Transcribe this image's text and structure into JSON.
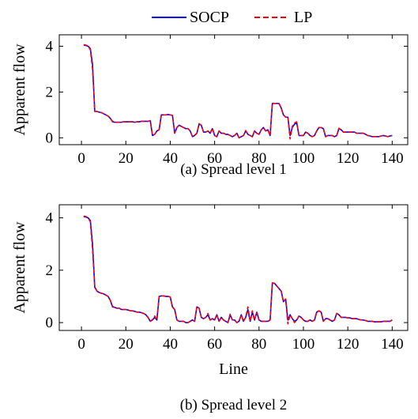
{
  "legend": {
    "entries": [
      {
        "name": "SOCP",
        "color": "#0000ff",
        "dash": "solid"
      },
      {
        "name": "LP",
        "color": "#ff0000",
        "dash": "dashed"
      }
    ],
    "placement": "top-center"
  },
  "chart_data": [
    {
      "type": "line",
      "caption": "(a) Spread level 1",
      "ylabel": "Apparent flow",
      "xlabel": "",
      "xlim": [
        -10,
        147
      ],
      "ylim": [
        -0.3,
        4.5
      ],
      "xticks": [
        0,
        20,
        40,
        60,
        80,
        100,
        120,
        140
      ],
      "yticks": [
        0,
        2,
        4
      ],
      "grid": false,
      "x": [
        1,
        2,
        3,
        4,
        5,
        6,
        7,
        8,
        9,
        10,
        11,
        12,
        13,
        14,
        15,
        16,
        17,
        18,
        19,
        20,
        21,
        22,
        23,
        24,
        25,
        26,
        27,
        28,
        29,
        30,
        31,
        32,
        33,
        34,
        35,
        36,
        37,
        38,
        39,
        40,
        41,
        42,
        43,
        44,
        45,
        46,
        47,
        48,
        49,
        50,
        51,
        52,
        53,
        54,
        55,
        56,
        57,
        58,
        59,
        60,
        61,
        62,
        63,
        64,
        65,
        66,
        67,
        68,
        69,
        70,
        71,
        72,
        73,
        74,
        75,
        76,
        77,
        78,
        79,
        80,
        81,
        82,
        83,
        84,
        85,
        86,
        87,
        88,
        89,
        90,
        91,
        92,
        93,
        94,
        95,
        96,
        97,
        98,
        99,
        100,
        101,
        102,
        103,
        104,
        105,
        106,
        107,
        108,
        109,
        110,
        111,
        112,
        113,
        114,
        115,
        116,
        117,
        118,
        119,
        120,
        121,
        122,
        123,
        124,
        125,
        126,
        127,
        128,
        129,
        130,
        131,
        132,
        133,
        134,
        135,
        136,
        137,
        138,
        139,
        140
      ],
      "series": [
        {
          "name": "SOCP",
          "values": [
            4.05,
            4.03,
            4.0,
            3.9,
            3.2,
            1.15,
            1.15,
            1.12,
            1.1,
            1.05,
            1.0,
            0.95,
            0.85,
            0.7,
            0.68,
            0.68,
            0.68,
            0.68,
            0.7,
            0.7,
            0.7,
            0.7,
            0.7,
            0.68,
            0.7,
            0.7,
            0.72,
            0.72,
            0.72,
            0.72,
            0.75,
            0.1,
            0.15,
            0.3,
            0.35,
            1.0,
            1.0,
            1.0,
            1.02,
            1.0,
            0.98,
            0.2,
            0.45,
            0.55,
            0.5,
            0.45,
            0.4,
            0.4,
            0.3,
            0.05,
            0.1,
            0.2,
            0.6,
            0.55,
            0.25,
            0.25,
            0.3,
            0.2,
            0.4,
            0.1,
            0.05,
            0.3,
            0.2,
            0.2,
            0.15,
            0.15,
            0.1,
            0.05,
            0.1,
            0.2,
            0.0,
            0.05,
            0.1,
            0.3,
            0.15,
            0.1,
            0.05,
            0.3,
            0.2,
            0.15,
            0.35,
            0.45,
            0.3,
            0.35,
            0.1,
            1.5,
            1.5,
            1.5,
            1.5,
            1.3,
            1.0,
            0.9,
            0.9,
            0.1,
            0.45,
            0.6,
            0.65,
            0.1,
            0.1,
            0.1,
            0.25,
            0.2,
            0.1,
            0.05,
            0.1,
            0.3,
            0.45,
            0.45,
            0.4,
            0.05,
            0.1,
            0.1,
            0.1,
            0.05,
            0.1,
            0.4,
            0.35,
            0.25,
            0.25,
            0.25,
            0.25,
            0.25,
            0.25,
            0.2,
            0.2,
            0.2,
            0.2,
            0.15,
            0.1,
            0.08,
            0.05,
            0.05,
            0.05,
            0.05,
            0.08,
            0.1,
            0.08,
            0.05,
            0.08,
            0.1
          ]
        },
        {
          "name": "LP",
          "values": [
            4.07,
            4.05,
            4.0,
            3.85,
            3.0,
            1.18,
            1.15,
            1.12,
            1.1,
            1.05,
            1.0,
            0.95,
            0.85,
            0.72,
            0.68,
            0.68,
            0.68,
            0.68,
            0.7,
            0.7,
            0.7,
            0.7,
            0.7,
            0.68,
            0.7,
            0.7,
            0.72,
            0.72,
            0.72,
            0.72,
            0.75,
            0.12,
            0.15,
            0.3,
            0.35,
            1.02,
            1.0,
            1.0,
            1.02,
            1.0,
            0.98,
            0.22,
            0.45,
            0.55,
            0.5,
            0.45,
            0.4,
            0.4,
            0.3,
            0.05,
            0.12,
            0.2,
            0.62,
            0.55,
            0.25,
            0.25,
            0.3,
            0.2,
            0.42,
            0.1,
            0.05,
            0.3,
            0.2,
            0.2,
            0.15,
            0.15,
            0.1,
            0.05,
            0.1,
            0.2,
            0.0,
            0.05,
            0.1,
            0.32,
            0.15,
            0.1,
            0.05,
            0.3,
            0.2,
            0.15,
            0.35,
            0.45,
            0.3,
            0.35,
            0.1,
            1.52,
            1.5,
            1.5,
            1.5,
            1.3,
            1.0,
            0.9,
            0.92,
            -0.05,
            0.5,
            0.65,
            0.7,
            0.1,
            0.1,
            0.1,
            0.25,
            0.2,
            0.1,
            0.05,
            0.1,
            0.3,
            0.45,
            0.45,
            0.4,
            0.05,
            0.1,
            0.1,
            0.1,
            0.05,
            0.1,
            0.42,
            0.35,
            0.25,
            0.25,
            0.25,
            0.25,
            0.25,
            0.25,
            0.2,
            0.2,
            0.2,
            0.2,
            0.15,
            0.1,
            0.08,
            0.05,
            0.05,
            0.05,
            0.05,
            0.08,
            0.1,
            0.08,
            0.05,
            0.08,
            0.1
          ]
        }
      ]
    },
    {
      "type": "line",
      "caption": "(b) Spread level 2",
      "ylabel": "Apparent flow",
      "xlabel": "Line",
      "xlim": [
        -10,
        147
      ],
      "ylim": [
        -0.3,
        4.5
      ],
      "xticks": [
        0,
        20,
        40,
        60,
        80,
        100,
        120,
        140
      ],
      "yticks": [
        0,
        2,
        4
      ],
      "grid": false,
      "x": [
        1,
        2,
        3,
        4,
        5,
        6,
        7,
        8,
        9,
        10,
        11,
        12,
        13,
        14,
        15,
        16,
        17,
        18,
        19,
        20,
        21,
        22,
        23,
        24,
        25,
        26,
        27,
        28,
        29,
        30,
        31,
        32,
        33,
        34,
        35,
        36,
        37,
        38,
        39,
        40,
        41,
        42,
        43,
        44,
        45,
        46,
        47,
        48,
        49,
        50,
        51,
        52,
        53,
        54,
        55,
        56,
        57,
        58,
        59,
        60,
        61,
        62,
        63,
        64,
        65,
        66,
        67,
        68,
        69,
        70,
        71,
        72,
        73,
        74,
        75,
        76,
        77,
        78,
        79,
        80,
        81,
        82,
        83,
        84,
        85,
        86,
        87,
        88,
        89,
        90,
        91,
        92,
        93,
        94,
        95,
        96,
        97,
        98,
        99,
        100,
        101,
        102,
        103,
        104,
        105,
        106,
        107,
        108,
        109,
        110,
        111,
        112,
        113,
        114,
        115,
        116,
        117,
        118,
        119,
        120,
        121,
        122,
        123,
        124,
        125,
        126,
        127,
        128,
        129,
        130,
        131,
        132,
        133,
        134,
        135,
        136,
        137,
        138,
        139,
        140
      ],
      "series": [
        {
          "name": "SOCP",
          "values": [
            4.05,
            4.03,
            4.0,
            3.9,
            3.0,
            1.35,
            1.2,
            1.15,
            1.12,
            1.1,
            1.05,
            1.0,
            0.85,
            0.6,
            0.58,
            0.55,
            0.55,
            0.5,
            0.5,
            0.5,
            0.48,
            0.45,
            0.45,
            0.43,
            0.4,
            0.4,
            0.38,
            0.35,
            0.3,
            0.2,
            0.05,
            0.1,
            0.2,
            0.1,
            1.0,
            1.02,
            1.02,
            1.0,
            1.0,
            0.98,
            0.6,
            0.5,
            0.1,
            0.05,
            0.05,
            0.05,
            0.0,
            0.0,
            0.05,
            0.1,
            0.05,
            0.6,
            0.55,
            0.2,
            0.15,
            0.2,
            0.3,
            0.1,
            0.15,
            0.1,
            0.3,
            0.05,
            0.2,
            0.1,
            0.05,
            0.0,
            0.3,
            0.1,
            0.1,
            0.0,
            0.05,
            0.3,
            0.05,
            0.2,
            0.5,
            0.05,
            0.4,
            0.1,
            0.4,
            0.1,
            0.05,
            0.05,
            0.05,
            0.05,
            0.1,
            1.5,
            1.5,
            1.4,
            1.3,
            1.2,
            0.8,
            0.9,
            0.1,
            0.3,
            0.15,
            0.05,
            0.1,
            0.25,
            0.2,
            0.1,
            0.05,
            0.05,
            0.1,
            0.05,
            0.1,
            0.4,
            0.45,
            0.4,
            0.05,
            0.15,
            0.15,
            0.1,
            0.05,
            0.1,
            0.35,
            0.3,
            0.2,
            0.2,
            0.2,
            0.18,
            0.18,
            0.15,
            0.15,
            0.15,
            0.12,
            0.1,
            0.1,
            0.08,
            0.05,
            0.05,
            0.05,
            0.03,
            0.03,
            0.03,
            0.03,
            0.05,
            0.05,
            0.05,
            0.05,
            0.1
          ]
        },
        {
          "name": "LP",
          "values": [
            4.07,
            4.05,
            4.0,
            3.85,
            2.8,
            1.38,
            1.2,
            1.15,
            1.12,
            1.1,
            1.05,
            1.0,
            0.85,
            0.62,
            0.58,
            0.55,
            0.55,
            0.5,
            0.5,
            0.5,
            0.48,
            0.45,
            0.45,
            0.43,
            0.4,
            0.4,
            0.38,
            0.35,
            0.3,
            0.2,
            0.05,
            0.12,
            0.25,
            0.1,
            1.0,
            1.02,
            1.02,
            1.0,
            1.0,
            0.98,
            0.6,
            0.5,
            0.1,
            0.05,
            0.05,
            0.05,
            0.0,
            0.0,
            0.05,
            0.1,
            0.05,
            0.62,
            0.55,
            0.2,
            0.15,
            0.2,
            0.35,
            0.1,
            0.15,
            0.1,
            0.3,
            0.05,
            0.2,
            0.1,
            0.05,
            0.0,
            0.32,
            0.1,
            0.1,
            0.0,
            0.05,
            0.3,
            0.05,
            0.2,
            0.6,
            0.05,
            0.45,
            0.1,
            0.4,
            0.1,
            0.05,
            0.05,
            0.05,
            0.05,
            0.1,
            1.52,
            1.5,
            1.4,
            1.3,
            1.2,
            0.8,
            0.9,
            -0.05,
            0.3,
            0.15,
            0.0,
            0.1,
            0.25,
            0.2,
            0.1,
            0.05,
            0.05,
            0.1,
            0.05,
            0.1,
            0.42,
            0.45,
            0.4,
            0.05,
            0.15,
            0.15,
            0.1,
            0.05,
            0.1,
            0.35,
            0.3,
            0.2,
            0.2,
            0.2,
            0.18,
            0.18,
            0.15,
            0.15,
            0.15,
            0.12,
            0.1,
            0.1,
            0.08,
            0.05,
            0.05,
            0.05,
            0.03,
            0.03,
            0.03,
            0.03,
            0.05,
            0.05,
            0.05,
            0.05,
            0.1
          ]
        }
      ]
    }
  ]
}
